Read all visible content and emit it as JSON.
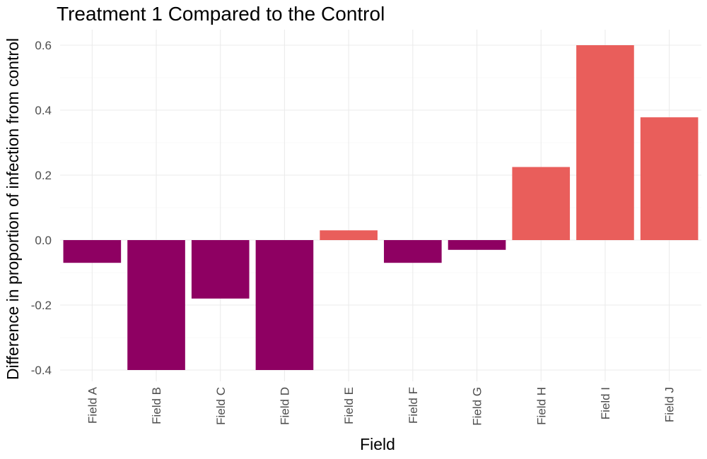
{
  "chart_data": {
    "type": "bar",
    "title": "Treatment 1 Compared to the Control",
    "xlabel": "Field",
    "ylabel": "Difference in proportion of infection from control",
    "categories": [
      "Field A",
      "Field B",
      "Field C",
      "Field D",
      "Field E",
      "Field F",
      "Field G",
      "Field H",
      "Field I",
      "Field J"
    ],
    "values": [
      -0.07,
      -0.4,
      -0.18,
      -0.4,
      0.03,
      -0.07,
      -0.03,
      0.225,
      0.6,
      0.378
    ],
    "ylim": [
      -0.4,
      0.6
    ],
    "yticks": [
      "-0.4",
      "-0.2",
      "0.0",
      "0.2",
      "0.4",
      "0.6"
    ],
    "grid": true,
    "legend": "none",
    "colors": {
      "negative": "#8e0062",
      "positive": "#e95e5b"
    }
  }
}
